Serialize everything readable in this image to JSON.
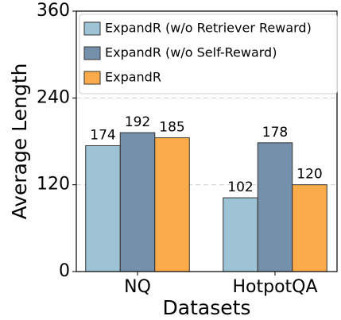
{
  "chart_data": {
    "type": "bar",
    "x_label": "Datasets",
    "y_label": "Average Length",
    "categories": [
      "NQ",
      "HotpotQA"
    ],
    "series": [
      {
        "name": "ExpandR (w/o Retriever Reward)",
        "color": "#9dc3d4",
        "values": [
          174,
          102
        ]
      },
      {
        "name": "ExpandR (w/o Self-Reward)",
        "color": "#7590aa",
        "values": [
          192,
          178
        ]
      },
      {
        "name": "ExpandR",
        "color": "#fbab4a",
        "values": [
          185,
          120
        ]
      }
    ],
    "ylim": [
      0,
      360
    ],
    "yticks": [
      0,
      120,
      240,
      360
    ],
    "grid": true,
    "legend": "upper left"
  }
}
